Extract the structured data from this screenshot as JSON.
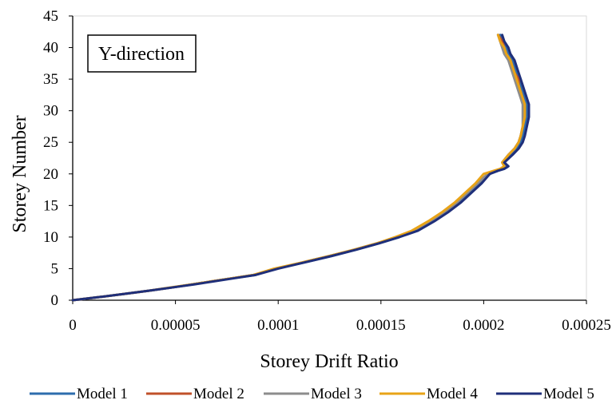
{
  "chart_data": {
    "type": "line",
    "title": "",
    "xlabel": "Storey Drift Ratio",
    "ylabel": "Storey Number",
    "xlim": [
      0,
      0.00025
    ],
    "ylim": [
      0,
      45
    ],
    "x_ticks": [
      "0",
      "0.00005",
      "0.0001",
      "0.00015",
      "0.0002",
      "0.00025"
    ],
    "y_ticks": [
      "0",
      "5",
      "10",
      "15",
      "20",
      "25",
      "30",
      "35",
      "40",
      "45"
    ],
    "annotation": "Y-direction",
    "legend_position": "bottom",
    "grid": false,
    "series": [
      {
        "name": "Model 1",
        "color": "#2E6DAD",
        "points": [
          [
            0,
            0
          ],
          [
            1.3e-05,
            0.5
          ],
          [
            2.5e-05,
            1
          ],
          [
            3.7e-05,
            1.5
          ],
          [
            4.8e-05,
            2
          ],
          [
            5.8e-05,
            2.5
          ],
          [
            6.8e-05,
            3
          ],
          [
            7.8e-05,
            3.5
          ],
          [
            8.9e-05,
            4
          ],
          [
            9.9e-05,
            5
          ],
          [
            0.000113,
            6
          ],
          [
            0.000126,
            7
          ],
          [
            0.000138,
            8
          ],
          [
            0.000149,
            9
          ],
          [
            0.000159,
            10
          ],
          [
            0.000167,
            11
          ],
          [
            0.000175,
            12.5
          ],
          [
            0.000182,
            14
          ],
          [
            0.000188,
            15.5
          ],
          [
            0.000193,
            17
          ],
          [
            0.000198,
            18.5
          ],
          [
            0.000203,
            20
          ],
          [
            0.000207,
            20.5
          ],
          [
            0.00021,
            20.8
          ],
          [
            0.000212,
            21.2
          ],
          [
            0.00021,
            21.8
          ],
          [
            0.000213,
            23
          ],
          [
            0.000216,
            24
          ],
          [
            0.000218,
            25
          ],
          [
            0.000219,
            26
          ],
          [
            0.00022,
            27.5
          ],
          [
            0.000221,
            29
          ],
          [
            0.000221,
            30
          ],
          [
            0.000221,
            31
          ],
          [
            0.00022,
            32
          ],
          [
            0.000219,
            33
          ],
          [
            0.000218,
            34
          ],
          [
            0.000218,
            35
          ],
          [
            0.000216,
            36
          ],
          [
            0.000215,
            37
          ],
          [
            0.000214,
            38
          ],
          [
            0.000212,
            39
          ],
          [
            0.000211,
            40
          ],
          [
            0.00021,
            41
          ],
          [
            0.000208,
            42
          ]
        ]
      },
      {
        "name": "Model 2",
        "color": "#C0502A",
        "points": [
          [
            0,
            0
          ],
          [
            1.3e-05,
            0.5
          ],
          [
            2.5e-05,
            1
          ],
          [
            3.7e-05,
            1.5
          ],
          [
            4.8e-05,
            2
          ],
          [
            5.8e-05,
            2.5
          ],
          [
            6.8e-05,
            3
          ],
          [
            7.8e-05,
            3.5
          ],
          [
            8.8e-05,
            4
          ],
          [
            9.9e-05,
            5
          ],
          [
            0.000112,
            6
          ],
          [
            0.000125,
            7
          ],
          [
            0.000137,
            8
          ],
          [
            0.000148,
            9
          ],
          [
            0.000158,
            10
          ],
          [
            0.000166,
            11
          ],
          [
            0.000174,
            12.5
          ],
          [
            0.000181,
            14
          ],
          [
            0.000187,
            15.5
          ],
          [
            0.000192,
            17
          ],
          [
            0.000197,
            18.5
          ],
          [
            0.000202,
            20
          ],
          [
            0.000206,
            20.5
          ],
          [
            0.000209,
            20.8
          ],
          [
            0.000211,
            21.2
          ],
          [
            0.000209,
            21.8
          ],
          [
            0.000212,
            23
          ],
          [
            0.000215,
            24
          ],
          [
            0.000217,
            25
          ],
          [
            0.000218,
            26
          ],
          [
            0.000219,
            27.5
          ],
          [
            0.00022,
            29
          ],
          [
            0.00022,
            30
          ],
          [
            0.00022,
            31
          ],
          [
            0.000219,
            32
          ],
          [
            0.000218,
            33
          ],
          [
            0.000217,
            34
          ],
          [
            0.000217,
            35
          ],
          [
            0.000215,
            36
          ],
          [
            0.000214,
            37
          ],
          [
            0.000213,
            38
          ],
          [
            0.000211,
            39
          ],
          [
            0.00021,
            40
          ],
          [
            0.000209,
            41
          ],
          [
            0.000207,
            42
          ]
        ]
      },
      {
        "name": "Model 3",
        "color": "#8C8C8C",
        "points": [
          [
            0,
            0
          ],
          [
            1.3e-05,
            0.5
          ],
          [
            2.5e-05,
            1
          ],
          [
            3.7e-05,
            1.5
          ],
          [
            4.8e-05,
            2
          ],
          [
            5.8e-05,
            2.5
          ],
          [
            6.8e-05,
            3
          ],
          [
            7.8e-05,
            3.5
          ],
          [
            8.8e-05,
            4
          ],
          [
            9.9e-05,
            5
          ],
          [
            0.000112,
            6
          ],
          [
            0.000125,
            7
          ],
          [
            0.000137,
            8
          ],
          [
            0.000148,
            9
          ],
          [
            0.000158,
            10
          ],
          [
            0.000166,
            11
          ],
          [
            0.000174,
            12.5
          ],
          [
            0.000181,
            14
          ],
          [
            0.000187,
            15.5
          ],
          [
            0.000192,
            17
          ],
          [
            0.000197,
            18.5
          ],
          [
            0.000202,
            20
          ],
          [
            0.000206,
            20.5
          ],
          [
            0.000209,
            20.8
          ],
          [
            0.000211,
            21.2
          ],
          [
            0.000209,
            21.8
          ],
          [
            0.000212,
            23
          ],
          [
            0.000215,
            24
          ],
          [
            0.000217,
            25
          ],
          [
            0.000218,
            26
          ],
          [
            0.000219,
            27.5
          ],
          [
            0.000219,
            29
          ],
          [
            0.000219,
            30
          ],
          [
            0.000219,
            31
          ],
          [
            0.000218,
            32
          ],
          [
            0.000217,
            33
          ],
          [
            0.000216,
            34
          ],
          [
            0.000215,
            35
          ],
          [
            0.000214,
            36
          ],
          [
            0.000213,
            37
          ],
          [
            0.000212,
            38
          ],
          [
            0.00021,
            39
          ],
          [
            0.000209,
            40
          ],
          [
            0.000208,
            41
          ],
          [
            0.000207,
            42
          ]
        ]
      },
      {
        "name": "Model 4",
        "color": "#E8A317",
        "points": [
          [
            0,
            0
          ],
          [
            1.3e-05,
            0.5
          ],
          [
            2.5e-05,
            1
          ],
          [
            3.7e-05,
            1.5
          ],
          [
            4.7e-05,
            2
          ],
          [
            5.8e-05,
            2.5
          ],
          [
            6.8e-05,
            3
          ],
          [
            7.8e-05,
            3.5
          ],
          [
            8.8e-05,
            4
          ],
          [
            9.8e-05,
            5
          ],
          [
            0.000112,
            6
          ],
          [
            0.000125,
            7
          ],
          [
            0.000137,
            8
          ],
          [
            0.000148,
            9
          ],
          [
            0.000157,
            10
          ],
          [
            0.000165,
            11
          ],
          [
            0.000173,
            12.5
          ],
          [
            0.00018,
            14
          ],
          [
            0.000186,
            15.5
          ],
          [
            0.000191,
            17
          ],
          [
            0.000196,
            18.5
          ],
          [
            0.0002,
            20
          ],
          [
            0.000205,
            20.5
          ],
          [
            0.000208,
            20.8
          ],
          [
            0.00021,
            21.2
          ],
          [
            0.000209,
            21.8
          ],
          [
            0.000212,
            23
          ],
          [
            0.000215,
            24
          ],
          [
            0.000217,
            25
          ],
          [
            0.000218,
            26
          ],
          [
            0.000219,
            27.5
          ],
          [
            0.00022,
            29
          ],
          [
            0.00022,
            30
          ],
          [
            0.00022,
            31
          ],
          [
            0.000219,
            32
          ],
          [
            0.000218,
            33
          ],
          [
            0.000217,
            34
          ],
          [
            0.000216,
            35
          ],
          [
            0.000215,
            36
          ],
          [
            0.000214,
            37
          ],
          [
            0.000213,
            38
          ],
          [
            0.000211,
            39
          ],
          [
            0.00021,
            40
          ],
          [
            0.000208,
            41
          ],
          [
            0.000207,
            42
          ]
        ]
      },
      {
        "name": "Model 5",
        "color": "#1F2F7A",
        "points": [
          [
            0,
            0
          ],
          [
            1.3e-05,
            0.5
          ],
          [
            2.5e-05,
            1
          ],
          [
            3.7e-05,
            1.5
          ],
          [
            4.8e-05,
            2
          ],
          [
            5.9e-05,
            2.5
          ],
          [
            6.9e-05,
            3
          ],
          [
            7.9e-05,
            3.5
          ],
          [
            8.9e-05,
            4
          ],
          [
            0.0001,
            5
          ],
          [
            0.000113,
            6
          ],
          [
            0.000126,
            7
          ],
          [
            0.000138,
            8
          ],
          [
            0.000149,
            9
          ],
          [
            0.000159,
            10
          ],
          [
            0.000168,
            11
          ],
          [
            0.000176,
            12.5
          ],
          [
            0.000183,
            14
          ],
          [
            0.000189,
            15.5
          ],
          [
            0.000194,
            17
          ],
          [
            0.000199,
            18.5
          ],
          [
            0.000203,
            20
          ],
          [
            0.000207,
            20.5
          ],
          [
            0.00021,
            20.8
          ],
          [
            0.000212,
            21.2
          ],
          [
            0.00021,
            21.8
          ],
          [
            0.000214,
            23
          ],
          [
            0.000217,
            24
          ],
          [
            0.000219,
            25
          ],
          [
            0.00022,
            26
          ],
          [
            0.000221,
            27.5
          ],
          [
            0.000222,
            29
          ],
          [
            0.000222,
            30
          ],
          [
            0.000222,
            31
          ],
          [
            0.000221,
            32
          ],
          [
            0.00022,
            33
          ],
          [
            0.000219,
            34
          ],
          [
            0.000218,
            35
          ],
          [
            0.000217,
            36
          ],
          [
            0.000216,
            37
          ],
          [
            0.000215,
            38
          ],
          [
            0.000213,
            39
          ],
          [
            0.000212,
            40
          ],
          [
            0.00021,
            41
          ],
          [
            0.000209,
            42
          ]
        ]
      }
    ]
  }
}
